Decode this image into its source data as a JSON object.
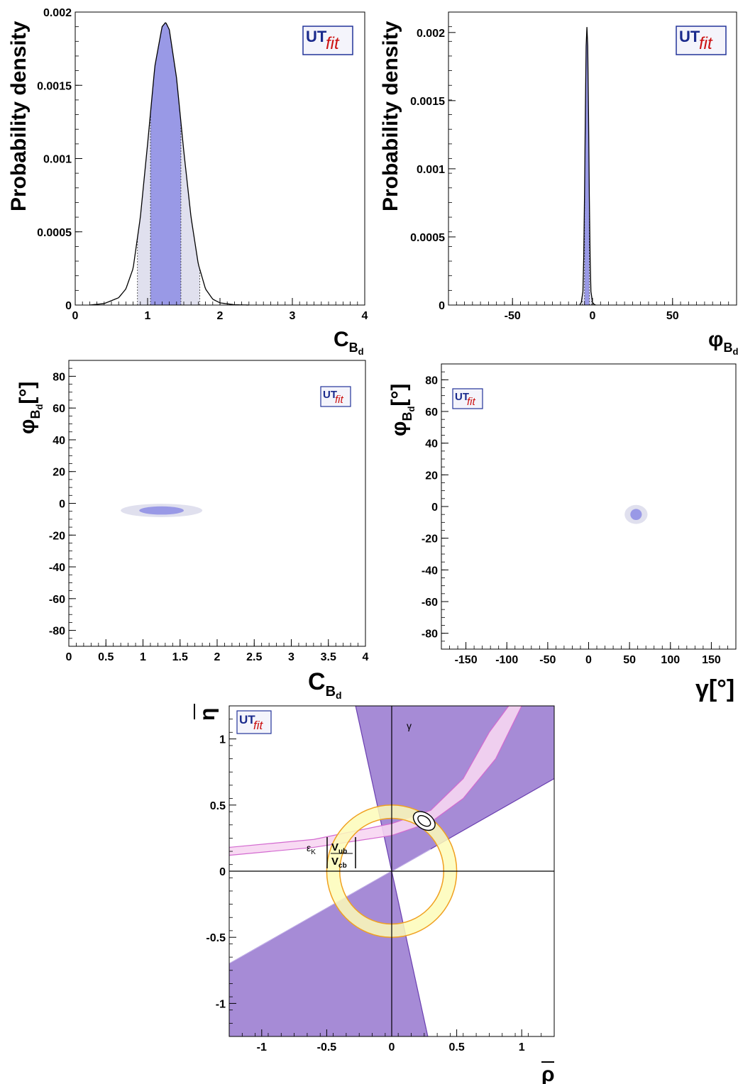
{
  "logo": {
    "text_ut": "UT",
    "text_fit": "fit"
  },
  "colors": {
    "purple_68": "#9999e6",
    "grey_95": "#e0e0ee",
    "band_purple": "#a68bd6",
    "band_pink": "#f7d6f2",
    "band_yellow": "#fdfbb8",
    "ring_orange": "#f0a020"
  },
  "chart_data": [
    {
      "type": "area",
      "ylabel": "Probability density",
      "xlabel_main": "C",
      "xlabel_sub": "B",
      "xlabel_subsub": "d",
      "xlim": [
        0,
        4
      ],
      "ylim": [
        0,
        0.002
      ],
      "xticks": [
        "0",
        "1",
        "2",
        "3",
        "4"
      ],
      "yticks": [
        "0",
        "0.0005",
        "0.001",
        "0.0015",
        "0.002"
      ],
      "x": [
        0.2,
        0.4,
        0.6,
        0.7,
        0.8,
        0.9,
        1.0,
        1.1,
        1.2,
        1.25,
        1.3,
        1.4,
        1.5,
        1.6,
        1.7,
        1.8,
        1.9,
        2.0,
        2.2,
        2.4
      ],
      "y": [
        0.0,
        1e-05,
        5e-05,
        0.00011,
        0.00025,
        0.0006,
        0.0011,
        0.00163,
        0.0019,
        0.00193,
        0.00188,
        0.00155,
        0.00105,
        0.0006,
        0.00028,
        0.00011,
        4e-05,
        1.5e-05,
        2e-06,
        0.0
      ],
      "interval_68": [
        1.04,
        1.46
      ],
      "interval_95": [
        0.86,
        1.72
      ],
      "grid": false
    },
    {
      "type": "area",
      "ylabel": "Probability density",
      "xlabel_main": "φ",
      "xlabel_sub": "B",
      "xlabel_subsub": "d",
      "xlim": [
        -90,
        90
      ],
      "ylim": [
        0,
        0.00215
      ],
      "xticks": [
        "-50",
        "0",
        "50"
      ],
      "yticks": [
        "0",
        "0.0005",
        "0.001",
        "0.0015",
        "0.002"
      ],
      "x": [
        -8,
        -7,
        -6,
        -5.5,
        -5,
        -4.5,
        -4,
        -3.5,
        -3,
        -2.5,
        -2,
        -1.5,
        -1,
        0,
        1,
        2
      ],
      "y": [
        0.0,
        2e-05,
        0.0001,
        0.00035,
        0.0008,
        0.0014,
        0.0019,
        0.00204,
        0.0019,
        0.0014,
        0.0008,
        0.00035,
        0.0001,
        2e-05,
        5e-06,
        0.0
      ],
      "interval_68": [
        -5.0,
        -2.0
      ],
      "interval_95": [
        -6.5,
        -0.5
      ],
      "grid": false
    },
    {
      "type": "heatmap",
      "ylabel_main": "φ",
      "ylabel_sub": "B",
      "ylabel_subsub": "d",
      "ylabel_unit": "[°]",
      "xlabel_main": "C",
      "xlabel_sub": "B",
      "xlabel_subsub": "d",
      "xlim": [
        0,
        4
      ],
      "ylim": [
        -90,
        90
      ],
      "xticks": [
        "0",
        "0.5",
        "1",
        "1.5",
        "2",
        "2.5",
        "3",
        "3.5",
        "4"
      ],
      "yticks": [
        "-80",
        "-60",
        "-40",
        "-20",
        "0",
        "20",
        "40",
        "60",
        "80"
      ],
      "region_95": {
        "center": [
          1.25,
          -4.5
        ],
        "half_width": [
          0.55,
          4.2
        ]
      },
      "region_68": {
        "center": [
          1.25,
          -4.5
        ],
        "half_width": [
          0.3,
          2.6
        ]
      },
      "grid": false
    },
    {
      "type": "heatmap",
      "ylabel_main": "φ",
      "ylabel_sub": "B",
      "ylabel_subsub": "d",
      "ylabel_unit": "[°]",
      "xlabel_main": "γ",
      "xlabel_unit": "[°]",
      "xlim": [
        -180,
        180
      ],
      "ylim": [
        -90,
        90
      ],
      "xticks": [
        "-150",
        "-100",
        "-50",
        "0",
        "50",
        "100",
        "150"
      ],
      "yticks": [
        "-80",
        "-60",
        "-40",
        "-20",
        "0",
        "20",
        "40",
        "60",
        "80"
      ],
      "region_95": {
        "center": [
          58,
          -5
        ],
        "half_width": [
          14,
          6
        ]
      },
      "region_68": {
        "center": [
          58,
          -5
        ],
        "half_width": [
          7,
          3.5
        ]
      },
      "grid": false
    },
    {
      "type": "area",
      "ylabel": "η",
      "xlabel": "ρ",
      "xlim": [
        -1.25,
        1.25
      ],
      "ylim": [
        -1.25,
        1.25
      ],
      "xticks": [
        "-1",
        "-0.5",
        "0",
        "0.5",
        "1"
      ],
      "yticks": [
        "-1",
        "-0.5",
        "0",
        "0.5",
        "1"
      ],
      "label_gamma": "γ",
      "label_epsk": "ε",
      "label_epsk_sub": "K",
      "label_vub": "V",
      "label_vub_sub": "ub",
      "label_vcb": "V",
      "label_vcb_sub": "cb",
      "gamma_lines": [
        {
          "slope": 2.4
        },
        {
          "slope": -4.5
        },
        {
          "slope": 0.56
        }
      ],
      "vub_ring": {
        "center": [
          0,
          0
        ],
        "r_inner": 0.4,
        "r_outer": 0.5
      },
      "epsk_band": {
        "lower": [
          [
            -1.25,
            0.12
          ],
          [
            -0.6,
            0.18
          ],
          [
            0,
            0.27
          ],
          [
            0.3,
            0.37
          ],
          [
            0.55,
            0.55
          ],
          [
            0.8,
            0.85
          ],
          [
            1.0,
            1.25
          ]
        ],
        "upper": [
          [
            -1.25,
            0.18
          ],
          [
            -0.6,
            0.24
          ],
          [
            0,
            0.36
          ],
          [
            0.3,
            0.46
          ],
          [
            0.55,
            0.7
          ],
          [
            0.75,
            1.05
          ],
          [
            0.9,
            1.25
          ]
        ]
      },
      "fit_point": {
        "rho": 0.25,
        "eta": 0.38
      },
      "grid": false
    }
  ]
}
